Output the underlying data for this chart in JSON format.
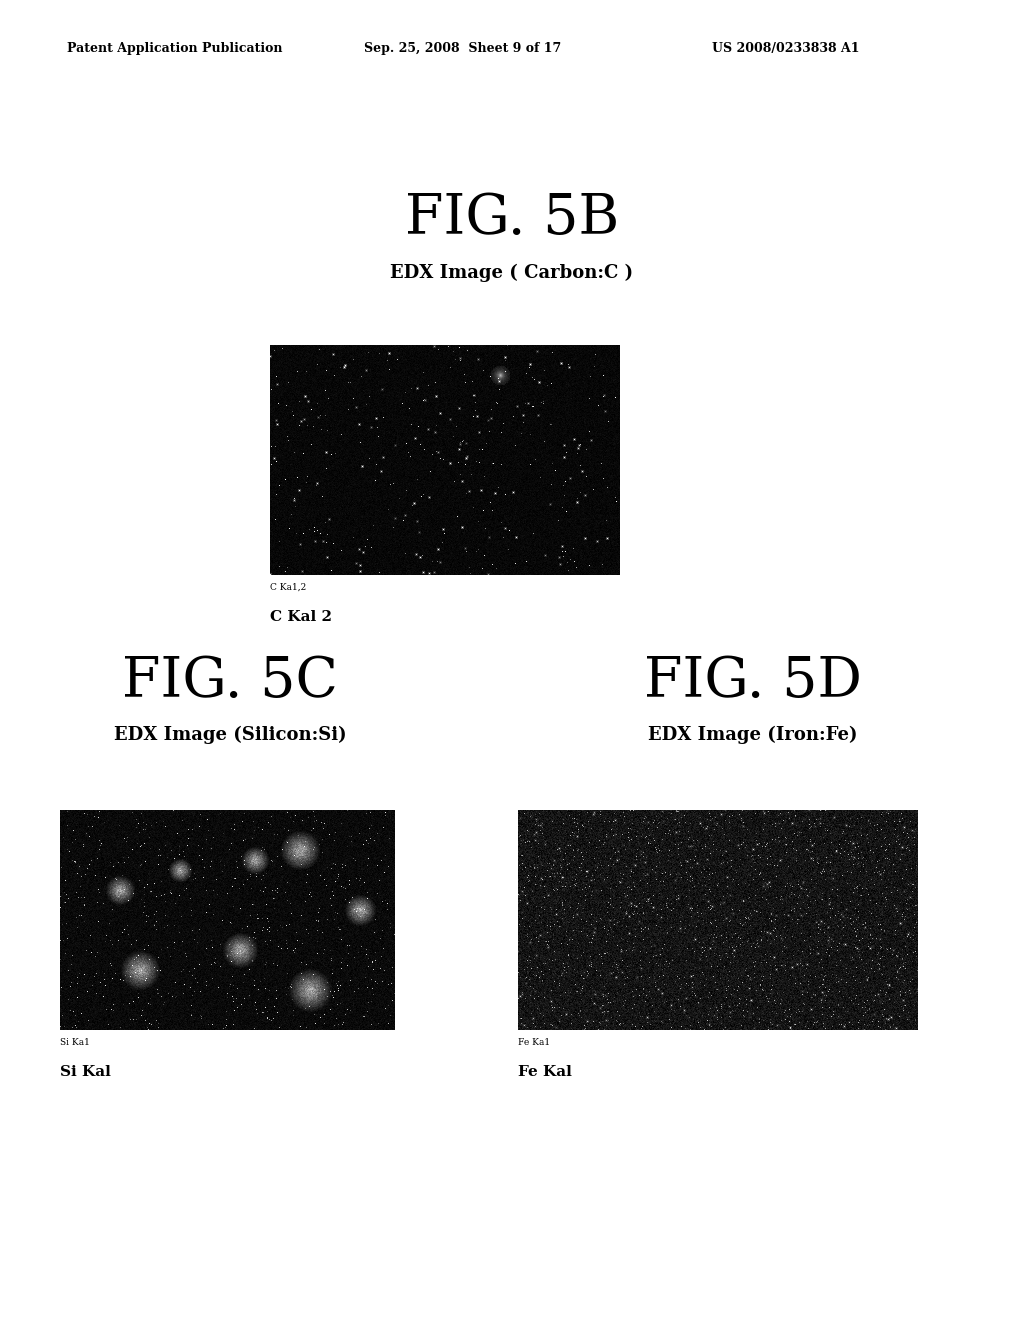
{
  "header_left": "Patent Application Publication",
  "header_mid": "Sep. 25, 2008  Sheet 9 of 17",
  "header_right": "US 2008/0233838 A1",
  "fig5b_title": "FIG. 5B",
  "fig5b_subtitle": "EDX Image ( Carbon:C )",
  "fig5b_label_small": "C Ka1,2",
  "fig5b_label_large": "C Kal 2",
  "fig5c_title": "FIG. 5C",
  "fig5c_subtitle": "EDX Image (Silicon:Si)",
  "fig5c_label_small": "Si Ka1",
  "fig5c_label_large": "Si Kal",
  "fig5d_title": "FIG. 5D",
  "fig5d_subtitle": "EDX Image (Iron:Fe)",
  "fig5d_label_small": "Fe Ka1",
  "fig5d_label_large": "Fe Kal",
  "bg_color": "#ffffff",
  "text_color": "#000000",
  "header_fontsize": 9,
  "fig_title_fontsize": 40,
  "subtitle_fontsize": 13,
  "label_small_fontsize": 6.5,
  "label_large_fontsize": 11
}
